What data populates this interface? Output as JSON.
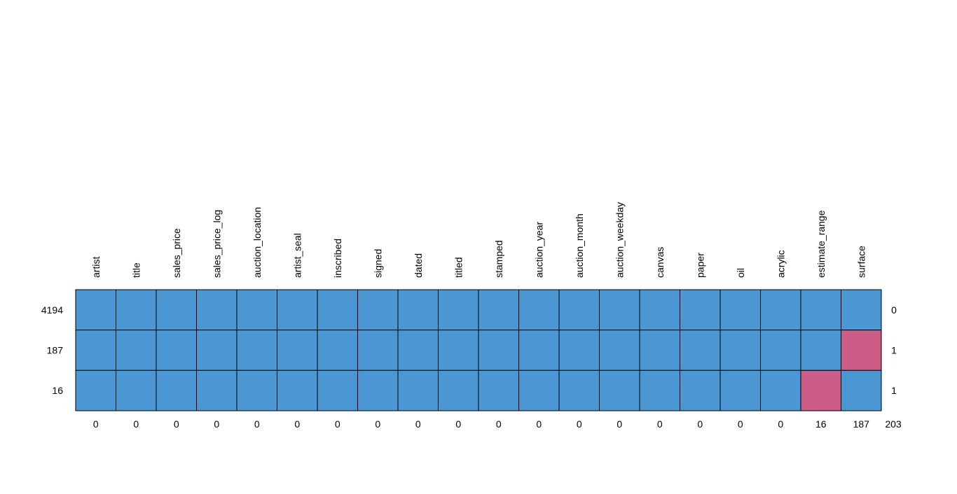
{
  "chart_data": {
    "type": "heatmap",
    "title": "",
    "xlabel": "",
    "ylabel": "",
    "columns": [
      "artist",
      "title",
      "sales_price",
      "sales_price_log",
      "auction_location",
      "artist_seal",
      "inscribed",
      "signed",
      "dated",
      "titled",
      "stamped",
      "auction_year",
      "auction_month",
      "auction_weekday",
      "canvas",
      "paper",
      "oil",
      "acrylic",
      "estimate_range",
      "surface"
    ],
    "rows": [
      {
        "count": "4194",
        "missing_count": "0",
        "pattern": [
          0,
          0,
          0,
          0,
          0,
          0,
          0,
          0,
          0,
          0,
          0,
          0,
          0,
          0,
          0,
          0,
          0,
          0,
          0,
          0
        ]
      },
      {
        "count": "187",
        "missing_count": "1",
        "pattern": [
          0,
          0,
          0,
          0,
          0,
          0,
          0,
          0,
          0,
          0,
          0,
          0,
          0,
          0,
          0,
          0,
          0,
          0,
          0,
          1
        ]
      },
      {
        "count": "16",
        "missing_count": "1",
        "pattern": [
          0,
          0,
          0,
          0,
          0,
          0,
          0,
          0,
          0,
          0,
          0,
          0,
          0,
          0,
          0,
          0,
          0,
          0,
          1,
          0
        ]
      }
    ],
    "column_missing": [
      "0",
      "0",
      "0",
      "0",
      "0",
      "0",
      "0",
      "0",
      "0",
      "0",
      "0",
      "0",
      "0",
      "0",
      "0",
      "0",
      "0",
      "0",
      "16",
      "187"
    ],
    "total_missing": "203",
    "colors": {
      "observed": "#4a97d4",
      "missing": "#cc5d86",
      "grid": "#000000"
    }
  }
}
